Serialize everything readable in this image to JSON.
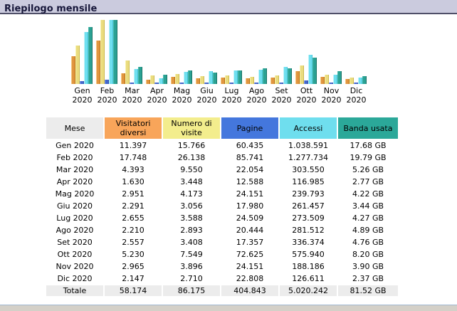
{
  "title": "Riepilogo mensile",
  "year_label": "2020",
  "chart_data": {
    "type": "bar",
    "title": "Riepilogo mensile",
    "categories": [
      "Gen 2020",
      "Feb 2020",
      "Mar 2020",
      "Apr 2020",
      "Mag 2020",
      "Giu 2020",
      "Lug 2020",
      "Ago 2020",
      "Set 2020",
      "Ott 2020",
      "Nov 2020",
      "Dic 2020"
    ],
    "months": [
      "Gen",
      "Feb",
      "Mar",
      "Apr",
      "Mag",
      "Giu",
      "Lug",
      "Ago",
      "Set",
      "Ott",
      "Nov",
      "Dic"
    ],
    "legend_position": "table-headers",
    "grid": false,
    "normalization": "each scale_group is normalized to its own max; full height = 90px",
    "series": [
      {
        "name": "Visitatori diversi",
        "scale_group": "visits",
        "colors": {
          "light": "#F6C87E",
          "main": "#E09540",
          "dark": "#B9740F"
        },
        "values": [
          11397,
          17748,
          4393,
          1630,
          2951,
          2291,
          2655,
          2210,
          2557,
          5230,
          2965,
          2147
        ]
      },
      {
        "name": "Numero di visite",
        "scale_group": "visits",
        "colors": {
          "light": "#F8F3B0",
          "main": "#EADC7E",
          "dark": "#CBBA4C"
        },
        "values": [
          15766,
          26138,
          9550,
          3448,
          4173,
          3056,
          3588,
          2893,
          3408,
          7549,
          3896,
          2710
        ]
      },
      {
        "name": "Pagine",
        "scale_group": "hits",
        "colors": {
          "light": "#7C9AE8",
          "main": "#4466CC",
          "dark": "#3052AE"
        },
        "values": [
          60435,
          85741,
          22054,
          12588,
          24151,
          17980,
          24509,
          20444,
          17357,
          72625,
          24151,
          22808
        ]
      },
      {
        "name": "Accessi",
        "scale_group": "hits",
        "colors": {
          "light": "#C0F2F8",
          "main": "#6FDFEF",
          "dark": "#46C0D8"
        },
        "values": [
          1038591,
          1277734,
          303550,
          116985,
          239793,
          261457,
          273509,
          281512,
          336374,
          575940,
          188186,
          126611
        ]
      },
      {
        "name": "Banda usata (GB)",
        "scale_group": "bandwidth",
        "colors": {
          "light": "#4FBCAC",
          "main": "#2AA193",
          "dark": "#1A7365"
        },
        "values": [
          17.68,
          19.79,
          5.26,
          2.77,
          4.22,
          3.44,
          4.27,
          4.89,
          4.76,
          8.2,
          3.9,
          2.37
        ]
      }
    ]
  },
  "table": {
    "columns": [
      {
        "label": "Mese",
        "bg": "#ECECEC"
      },
      {
        "label": "Visitatori diversi",
        "bg": "#F8A55A"
      },
      {
        "label": "Numero di visite",
        "bg": "#F3ED8D"
      },
      {
        "label": "Pagine",
        "bg": "#4477DD"
      },
      {
        "label": "Accessi",
        "bg": "#6FDEEE"
      },
      {
        "label": "Banda usata",
        "bg": "#2BA899"
      }
    ],
    "rows": [
      [
        "Gen 2020",
        "11.397",
        "15.766",
        "60.435",
        "1.038.591",
        "17.68 GB"
      ],
      [
        "Feb 2020",
        "17.748",
        "26.138",
        "85.741",
        "1.277.734",
        "19.79 GB"
      ],
      [
        "Mar 2020",
        "4.393",
        "9.550",
        "22.054",
        "303.550",
        "5.26 GB"
      ],
      [
        "Apr 2020",
        "1.630",
        "3.448",
        "12.588",
        "116.985",
        "2.77 GB"
      ],
      [
        "Mag 2020",
        "2.951",
        "4.173",
        "24.151",
        "239.793",
        "4.22 GB"
      ],
      [
        "Giu 2020",
        "2.291",
        "3.056",
        "17.980",
        "261.457",
        "3.44 GB"
      ],
      [
        "Lug 2020",
        "2.655",
        "3.588",
        "24.509",
        "273.509",
        "4.27 GB"
      ],
      [
        "Ago 2020",
        "2.210",
        "2.893",
        "20.444",
        "281.512",
        "4.89 GB"
      ],
      [
        "Set 2020",
        "2.557",
        "3.408",
        "17.357",
        "336.374",
        "4.76 GB"
      ],
      [
        "Ott 2020",
        "5.230",
        "7.549",
        "72.625",
        "575.940",
        "8.20 GB"
      ],
      [
        "Nov 2020",
        "2.965",
        "3.896",
        "24.151",
        "188.186",
        "3.90 GB"
      ],
      [
        "Dic 2020",
        "2.147",
        "2.710",
        "22.808",
        "126.611",
        "2.37 GB"
      ]
    ],
    "total_row": [
      "Totale",
      "58.174",
      "86.175",
      "404.843",
      "5.020.242",
      "81.52 GB"
    ]
  },
  "colors": {
    "title_bg": "#CBCBDE",
    "title_text": "#17173A",
    "title_border": "#4F4F68",
    "total_row_bg": "#ECECEC",
    "bottom_frame_bg": "#D4D0C8",
    "bottom_frame_border": "#9FB6D2"
  }
}
